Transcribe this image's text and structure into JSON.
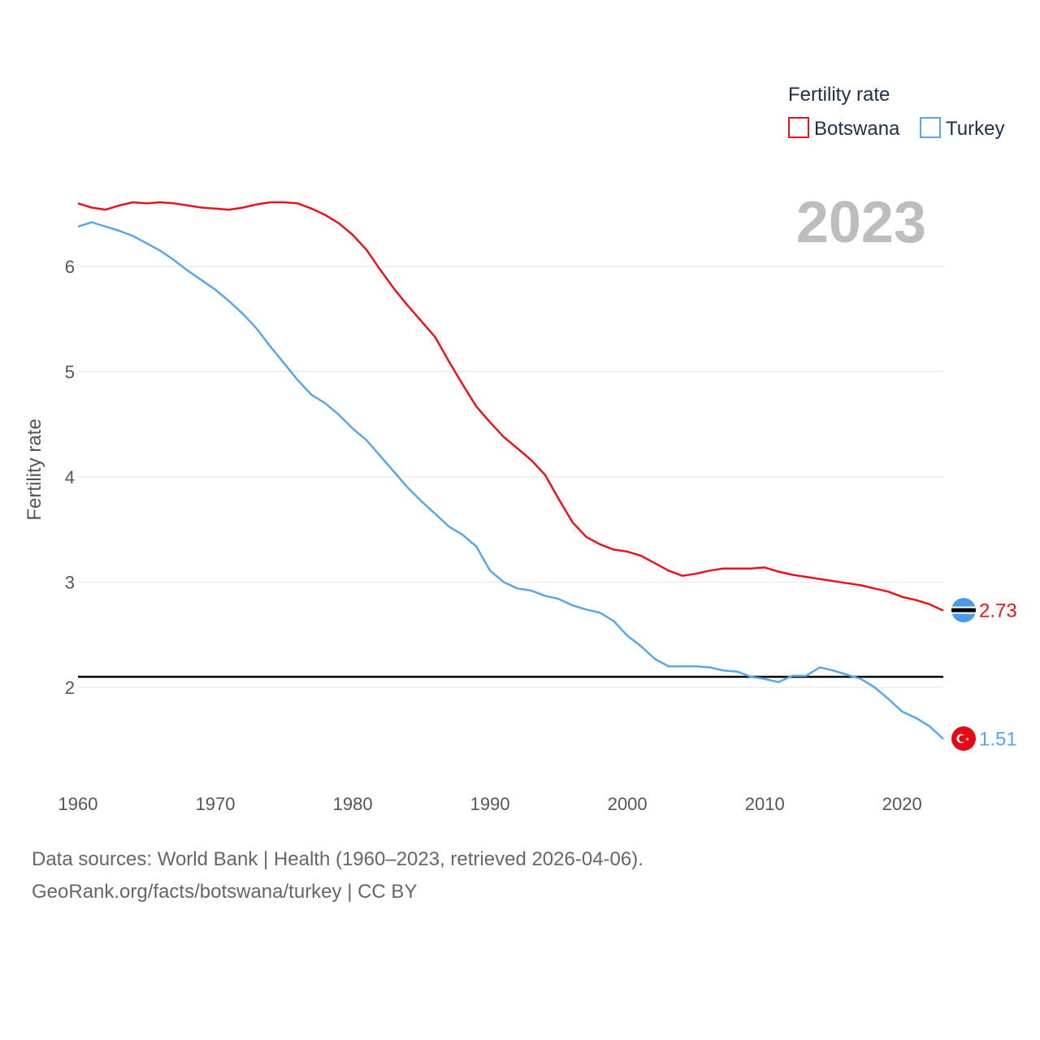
{
  "chart_data": {
    "type": "line",
    "title": "",
    "year_display": "2023",
    "xlabel": "",
    "ylabel": "Fertility rate",
    "xlim": [
      1960,
      2023
    ],
    "ylim": [
      1.0,
      6.8
    ],
    "x_ticks": [
      1960,
      1970,
      1980,
      1990,
      2000,
      2010,
      2020
    ],
    "y_ticks": [
      2,
      3,
      4,
      5,
      6
    ],
    "reference_line": {
      "value": 2.1,
      "color": "#000000"
    },
    "legend": {
      "title": "Fertility rate",
      "position": "top-right",
      "entries": [
        "Botswana",
        "Turkey"
      ]
    },
    "series": [
      {
        "name": "Botswana",
        "color": "#e8141c",
        "end_label": "2.73",
        "x": [
          1960,
          1961,
          1962,
          1963,
          1964,
          1965,
          1966,
          1967,
          1968,
          1969,
          1970,
          1971,
          1972,
          1973,
          1974,
          1975,
          1976,
          1977,
          1978,
          1979,
          1980,
          1981,
          1982,
          1983,
          1984,
          1985,
          1986,
          1987,
          1988,
          1989,
          1990,
          1991,
          1992,
          1993,
          1994,
          1995,
          1996,
          1997,
          1998,
          1999,
          2000,
          2001,
          2002,
          2003,
          2004,
          2005,
          2006,
          2007,
          2008,
          2009,
          2010,
          2011,
          2012,
          2013,
          2014,
          2015,
          2016,
          2017,
          2018,
          2019,
          2020,
          2021,
          2022,
          2023
        ],
        "values": [
          6.6,
          6.56,
          6.54,
          6.58,
          6.61,
          6.6,
          6.61,
          6.6,
          6.58,
          6.56,
          6.55,
          6.54,
          6.56,
          6.59,
          6.61,
          6.61,
          6.6,
          6.55,
          6.49,
          6.41,
          6.3,
          6.16,
          5.97,
          5.79,
          5.63,
          5.48,
          5.33,
          5.1,
          4.88,
          4.67,
          4.52,
          4.38,
          4.27,
          4.16,
          4.02,
          3.79,
          3.57,
          3.43,
          3.36,
          3.31,
          3.29,
          3.25,
          3.18,
          3.11,
          3.06,
          3.08,
          3.11,
          3.13,
          3.13,
          3.13,
          3.14,
          3.1,
          3.07,
          3.05,
          3.03,
          3.01,
          2.99,
          2.97,
          2.94,
          2.91,
          2.86,
          2.83,
          2.79,
          2.73
        ]
      },
      {
        "name": "Turkey",
        "color": "#5aa6e8",
        "end_label": "1.51",
        "x": [
          1960,
          1961,
          1962,
          1963,
          1964,
          1965,
          1966,
          1967,
          1968,
          1969,
          1970,
          1971,
          1972,
          1973,
          1974,
          1975,
          1976,
          1977,
          1978,
          1979,
          1980,
          1981,
          1982,
          1983,
          1984,
          1985,
          1986,
          1987,
          1988,
          1989,
          1990,
          1991,
          1992,
          1993,
          1994,
          1995,
          1996,
          1997,
          1998,
          1999,
          2000,
          2001,
          2002,
          2003,
          2004,
          2005,
          2006,
          2007,
          2008,
          2009,
          2010,
          2011,
          2012,
          2013,
          2014,
          2015,
          2016,
          2017,
          2018,
          2019,
          2020,
          2021,
          2022,
          2023
        ],
        "values": [
          6.38,
          6.42,
          6.38,
          6.34,
          6.29,
          6.22,
          6.15,
          6.06,
          5.96,
          5.87,
          5.78,
          5.67,
          5.55,
          5.41,
          5.24,
          5.08,
          4.92,
          4.78,
          4.7,
          4.59,
          4.46,
          4.35,
          4.2,
          4.05,
          3.9,
          3.77,
          3.65,
          3.53,
          3.45,
          3.34,
          3.11,
          3.0,
          2.94,
          2.92,
          2.87,
          2.84,
          2.78,
          2.74,
          2.71,
          2.63,
          2.49,
          2.39,
          2.27,
          2.2,
          2.2,
          2.2,
          2.19,
          2.16,
          2.15,
          2.1,
          2.08,
          2.05,
          2.11,
          2.11,
          2.19,
          2.16,
          2.12,
          2.08,
          2.0,
          1.89,
          1.77,
          1.71,
          1.63,
          1.51
        ]
      }
    ]
  },
  "footer": {
    "line1": "Data sources: World Bank | Health (1960–2023, retrieved 2026-04-06).",
    "line2": "GeoRank.org/facts/botswana/turkey | CC BY"
  }
}
